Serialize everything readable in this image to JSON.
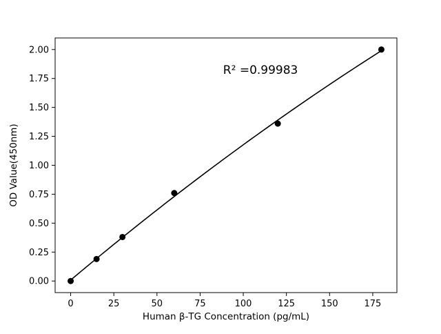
{
  "chart_data": {
    "type": "scatter",
    "title": "",
    "xlabel": "Human β-TG Concentration (pg/mL)",
    "ylabel": "OD Value(450nm)",
    "x": [
      0,
      15,
      30,
      60,
      120,
      180
    ],
    "y": [
      0.0,
      0.19,
      0.38,
      0.76,
      1.36,
      2.0
    ],
    "fit": "quadratic",
    "annotation": {
      "text": "R² =0.99983",
      "x": 110,
      "y": 1.79
    },
    "x_ticks": [
      0,
      25,
      50,
      75,
      100,
      125,
      150,
      175
    ],
    "y_ticks": [
      0.0,
      0.25,
      0.5,
      0.75,
      1.0,
      1.25,
      1.5,
      1.75,
      2.0
    ],
    "xlim": [
      -9,
      189
    ],
    "ylim": [
      -0.1,
      2.1
    ],
    "grid": false,
    "legend": null,
    "marker_color": "#000000",
    "line_color": "#000000",
    "background_color": "#ffffff"
  }
}
